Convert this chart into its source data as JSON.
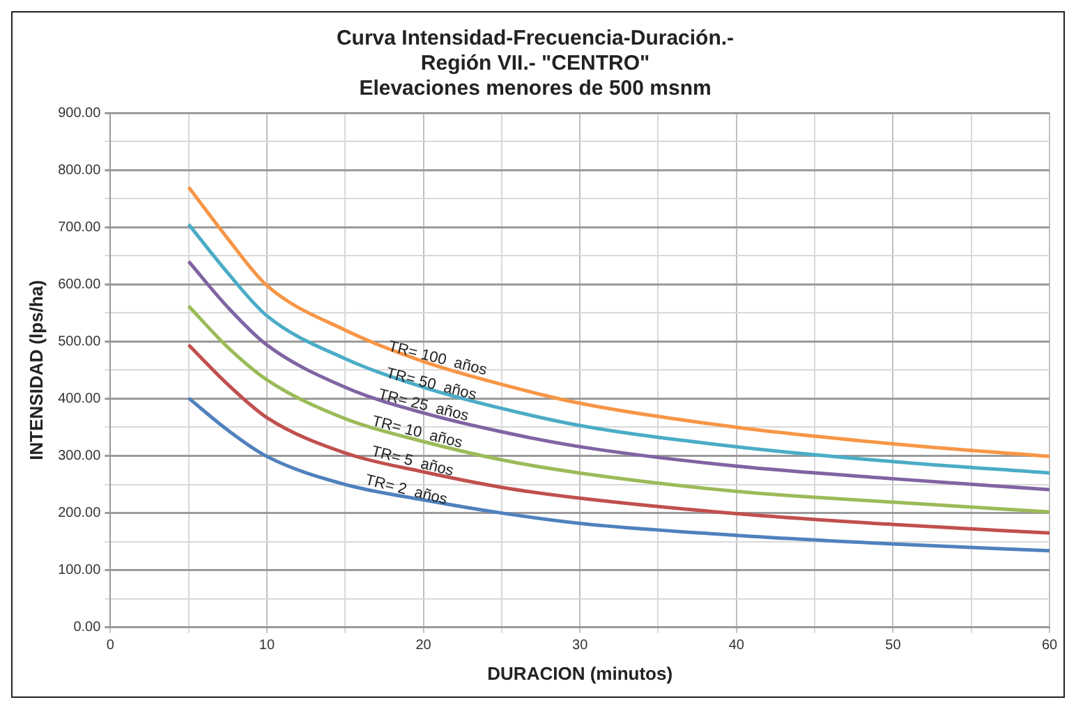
{
  "chart_data": {
    "type": "line",
    "title": "Curva Intensidad-Frecuencia-Duración.-\nRegión VII.- \"CENTRO\"\nElevaciones menores de 500 msnm",
    "xlabel": "DURACION (minutos)",
    "ylabel": "INTENSIDAD (lps/ha)",
    "x": [
      5,
      7.5,
      10,
      15,
      20,
      25,
      30,
      40,
      50,
      60
    ],
    "series": [
      {
        "color": "#f79646",
        "values": [
          770,
          680,
          598,
          520,
          465,
          425,
          392,
          350,
          321,
          299
        ]
      },
      {
        "color": "#4bacc6",
        "values": [
          705,
          620,
          545,
          470,
          420,
          383,
          353,
          316,
          290,
          270
        ]
      },
      {
        "color": "#8064a2",
        "values": [
          640,
          560,
          494,
          420,
          375,
          342,
          316,
          282,
          260,
          241
        ]
      },
      {
        "color": "#9bbb59",
        "values": [
          562,
          490,
          433,
          365,
          325,
          293,
          270,
          238,
          219,
          202
        ]
      },
      {
        "color": "#c0504d",
        "values": [
          494,
          425,
          367,
          305,
          272,
          245,
          226,
          199,
          180,
          165
        ]
      },
      {
        "color": "#4f81bd",
        "values": [
          401,
          345,
          299,
          250,
          223,
          200,
          182,
          161,
          146,
          134
        ]
      }
    ],
    "xlim": [
      0,
      60
    ],
    "xticks": [
      0,
      {
        "value": 5,
        "label": null
      },
      10,
      {
        "value": 15,
        "label": null
      },
      20,
      {
        "value": 25,
        "label": null
      },
      30,
      {
        "value": 35,
        "label": null
      },
      40,
      {
        "value": 45,
        "label": null
      },
      50,
      {
        "value": 55,
        "label": null
      },
      60
    ],
    "ylim": [
      0,
      900
    ],
    "yticks": [
      {
        "value": 0,
        "label": "0.00"
      },
      {
        "value": 50,
        "label": null
      },
      {
        "value": 100,
        "label": "100.00"
      },
      {
        "value": 150,
        "label": null
      },
      {
        "value": 200,
        "label": "200.00"
      },
      {
        "value": 250,
        "label": null
      },
      {
        "value": 300,
        "label": "300.00"
      },
      {
        "value": 350,
        "label": null
      },
      {
        "value": 400,
        "label": "400.00"
      },
      {
        "value": 450,
        "label": null
      },
      {
        "value": 500,
        "label": "500.00"
      },
      {
        "value": 550,
        "label": null
      },
      {
        "value": 600,
        "label": "600.00"
      },
      {
        "value": 650,
        "label": null
      },
      {
        "value": 700,
        "label": "700.00"
      },
      {
        "value": 750,
        "label": null
      },
      {
        "value": 800,
        "label": "800.00"
      },
      {
        "value": 850,
        "label": null
      },
      {
        "value": 900,
        "label": "900.00"
      }
    ],
    "grid": true,
    "legend": false,
    "marker": "none",
    "line_style": "solid",
    "annotations": [
      {
        "text": "TR= 100  años",
        "x": 20.9,
        "y": 470
      },
      {
        "text": "TR= 50  años",
        "x": 20.5,
        "y": 425
      },
      {
        "text": "TR= 25  años",
        "x": 20,
        "y": 388
      },
      {
        "text": "TR= 10  años",
        "x": 19.6,
        "y": 341
      },
      {
        "text": "TR= 5  años",
        "x": 19.3,
        "y": 290
      },
      {
        "text": "TR= 2  años",
        "x": 18.9,
        "y": 240
      }
    ]
  }
}
